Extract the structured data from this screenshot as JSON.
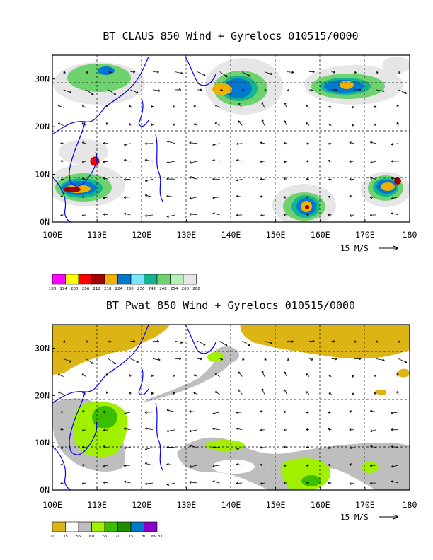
{
  "chart_data": [
    {
      "type": "heatmap",
      "title": "BT CLAUS 850 Wind + Gyrelocs 010515/0000",
      "x_ticks": [
        "100E",
        "110E",
        "120E",
        "130E",
        "140E",
        "150E",
        "160E",
        "170E",
        "180"
      ],
      "y_ticks": [
        "0N",
        "10N",
        "20N",
        "30N"
      ],
      "xlim": [
        100,
        180
      ],
      "ylim": [
        0,
        35
      ],
      "grid": true,
      "vector_reference": "15 M/S",
      "legend": {
        "levels": [
          "188",
          "194",
          "200",
          "206",
          "212",
          "218",
          "224",
          "230",
          "236",
          "242",
          "248",
          "254",
          "260",
          "266"
        ],
        "colors": [
          "#ff00ff",
          "#ffff00",
          "#ff0000",
          "#a00000",
          "#f0b000",
          "#0078d0",
          "#78e6ff",
          "#14b490",
          "#6ed26e",
          "#b4f0b4",
          "#e6e6e6"
        ]
      },
      "regions": [
        {
          "level": "cold_cloud",
          "lon": 137,
          "lat": 30,
          "color": "#f0b000"
        },
        {
          "level": "cold_cloud",
          "lon": 165,
          "lat": 30,
          "color": "#f0b000"
        },
        {
          "level": "cold_cloud",
          "lon": 106,
          "lat": 7,
          "color": "#a00000"
        },
        {
          "level": "cold_cloud",
          "lon": 175,
          "lat": 7,
          "color": "#a00000"
        },
        {
          "level": "cold_cloud",
          "lon": 155,
          "lat": 3,
          "color": "#a00000"
        }
      ]
    },
    {
      "type": "heatmap",
      "title": "BT Pwat 850 Wind + Gyrelocs 010515/0000",
      "x_ticks": [
        "100E",
        "110E",
        "120E",
        "130E",
        "140E",
        "150E",
        "160E",
        "170E",
        "180"
      ],
      "y_ticks": [
        "0N",
        "10N",
        "20N",
        "30N"
      ],
      "xlim": [
        100,
        180
      ],
      "ylim": [
        0,
        35
      ],
      "grid": true,
      "vector_reference": "15 M/S",
      "legend": {
        "levels": [
          "0",
          "35",
          "55",
          "60",
          "65",
          "70",
          "75",
          "80",
          "69.31"
        ],
        "colors": [
          "#dcb414",
          "#ffffff",
          "#bebebe",
          "#a0f000",
          "#3cbe00",
          "#1e8c00",
          "#0078d0",
          "#8c00c8"
        ]
      },
      "regions": [
        {
          "level": "35",
          "lon": 150,
          "lat": 33,
          "color": "#dcb414"
        },
        {
          "level": "60",
          "lon": 112,
          "lat": 14,
          "color": "#a0f000"
        },
        {
          "level": "60",
          "lon": 158,
          "lat": 3,
          "color": "#a0f000"
        },
        {
          "level": "55",
          "lon": 145,
          "lat": 6,
          "color": "#bebebe"
        }
      ]
    }
  ],
  "colors": {
    "coast": "#0000ff",
    "grid": "#000000",
    "vector": "#000000"
  }
}
